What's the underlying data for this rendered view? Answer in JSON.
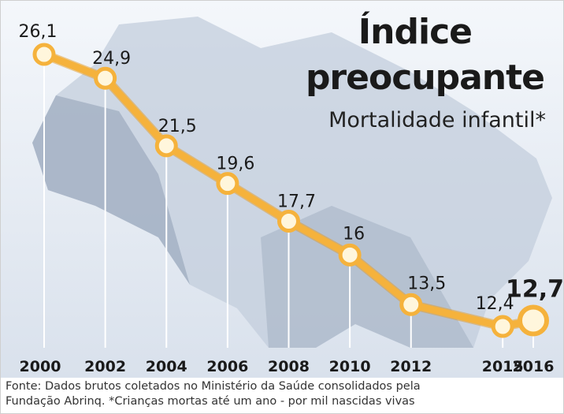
{
  "title_line1": "Índice",
  "title_line2": "preocupante",
  "subtitle": "Mortalidade infantil*",
  "footer": {
    "line1": "Fonte: Dados brutos coletados no Ministério da Saúde consolidados pela",
    "line2": "Fundação Abrinq. *Crianças mortas até um ano - por mil nascidas vivas"
  },
  "colors": {
    "line": "#f5b23c",
    "line_dark": "#e49a22",
    "marker_fill": "#fff6dc",
    "map": "#b9c5d4",
    "map_dark": "#7f91a7",
    "background_panel": "#e2e8f0"
  },
  "chart_data": {
    "type": "line",
    "x": [
      "2000",
      "2002",
      "2004",
      "2006",
      "2008",
      "2010",
      "2012",
      "2015",
      "2016"
    ],
    "values": [
      26.1,
      24.9,
      21.5,
      19.6,
      17.7,
      16,
      13.5,
      12.4,
      12.7
    ],
    "labels": [
      "26,1",
      "24,9",
      "21,5",
      "19,6",
      "17,7",
      "16",
      "13,5",
      "12,4",
      "12,7"
    ],
    "highlight_last": true
  }
}
